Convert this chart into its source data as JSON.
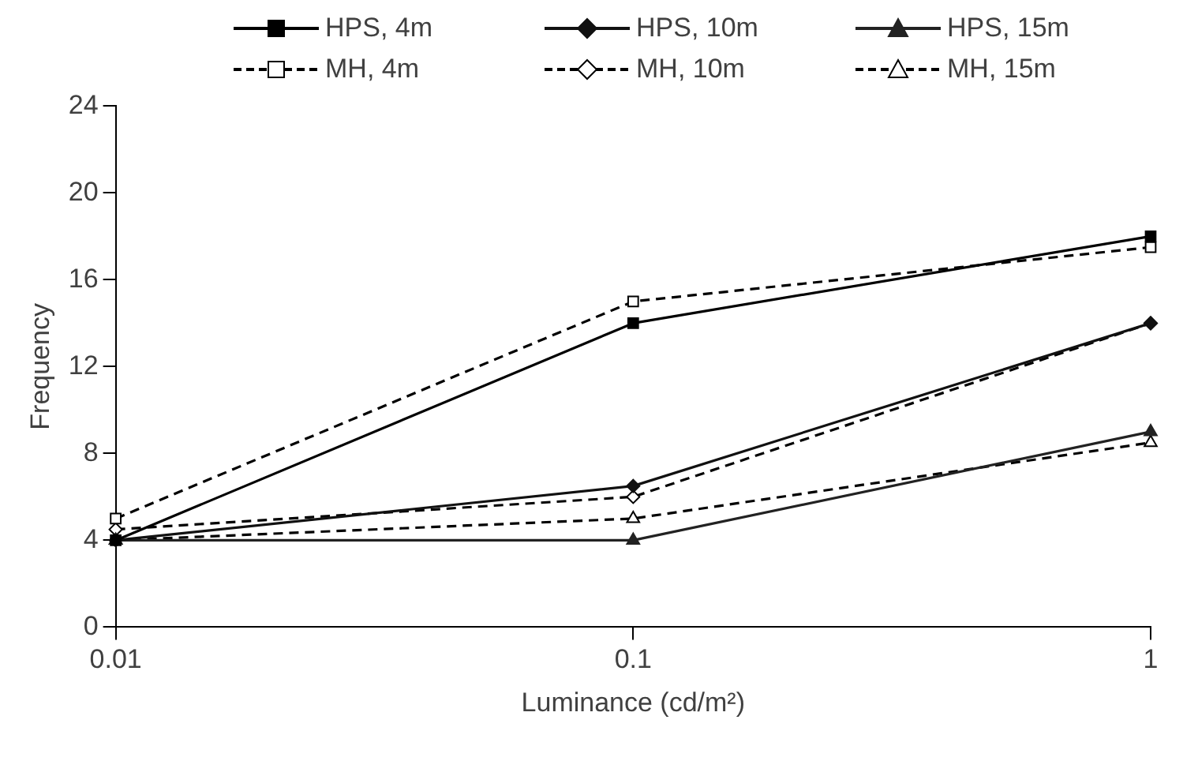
{
  "chart_data": {
    "type": "line",
    "xlabel": "Luminance (cd/m²)",
    "ylabel": "Frequency",
    "log": "x",
    "x": [
      0.01,
      0.1,
      1
    ],
    "xlim": [
      0.01,
      1
    ],
    "xticks": [
      0.01,
      0.1,
      1
    ],
    "ylim": [
      0,
      24
    ],
    "yticks": [
      0,
      4,
      8,
      12,
      16,
      20,
      24
    ],
    "grid": false,
    "legend": "top",
    "series": [
      {
        "name": "HPS, 4m",
        "color": "#000000",
        "values": [
          4,
          14,
          18
        ],
        "marker": "square",
        "line_style": "solid"
      },
      {
        "name": "HPS, 10m",
        "color": "#111111",
        "values": [
          4,
          6.5,
          14
        ],
        "marker": "diamond",
        "line_style": "solid"
      },
      {
        "name": "HPS, 15m",
        "color": "#222222",
        "values": [
          4,
          4,
          9
        ],
        "marker": "triangle",
        "line_style": "solid"
      },
      {
        "name": "MH, 4m",
        "color": "#000000",
        "values": [
          5,
          15,
          17.5
        ],
        "marker": "square",
        "line_style": "dashed"
      },
      {
        "name": "MH, 10m",
        "color": "#000000",
        "values": [
          4.5,
          6,
          14
        ],
        "marker": "diamond",
        "line_style": "dashed"
      },
      {
        "name": "MH, 15m",
        "color": "#000000",
        "values": [
          4,
          5,
          8.5
        ],
        "marker": "triangle",
        "line_style": "dashed"
      }
    ]
  }
}
